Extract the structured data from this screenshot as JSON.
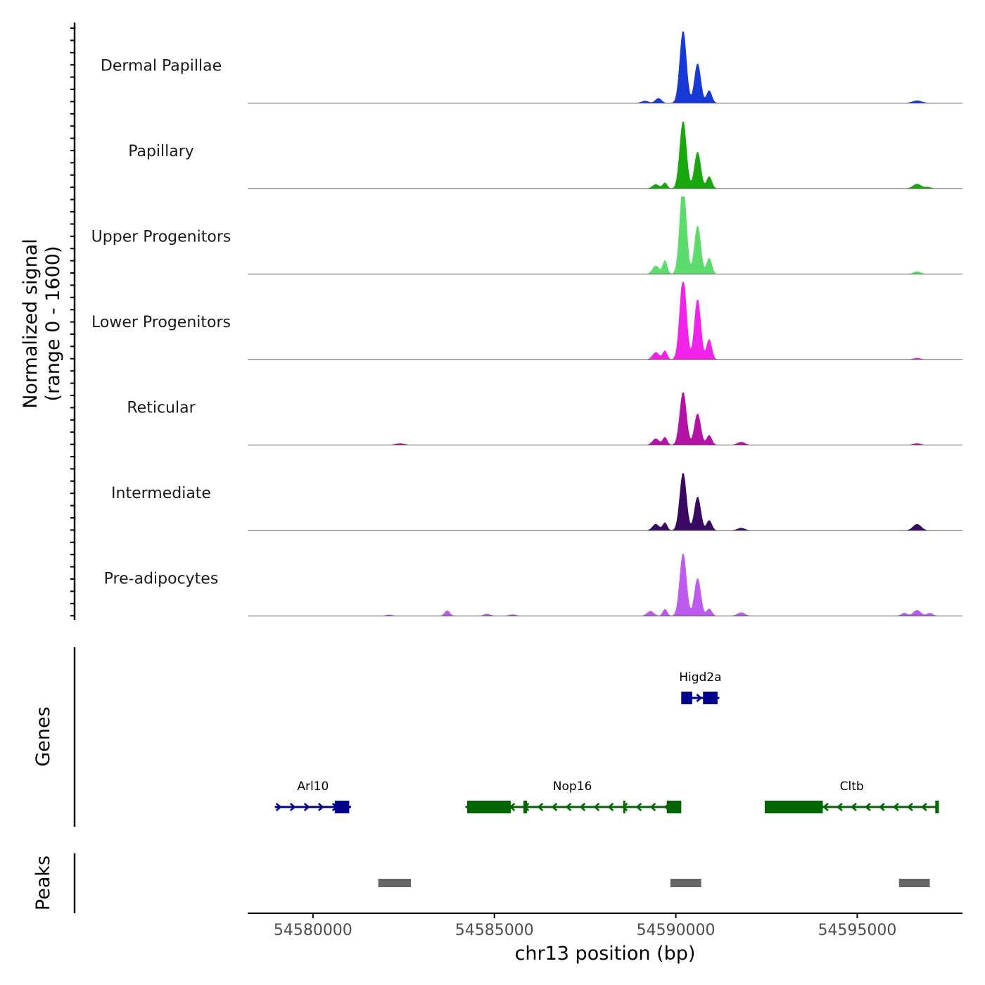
{
  "chart_data": {
    "type": "area",
    "title": "",
    "xlabel": "chr13 position (bp)",
    "ylabel_line1": "Normalized signal",
    "ylabel_line2": "(range 0 - 1600)",
    "ylim": [
      0,
      1600
    ],
    "xlim": [
      54578200,
      54597900
    ],
    "x_ticks": [
      54580000,
      54585000,
      54590000,
      54595000
    ],
    "x_tick_labels": [
      "54580000",
      "54585000",
      "54590000",
      "54595000"
    ],
    "baseline_color": "#555555",
    "series": [
      {
        "name": "Dermal Papillae",
        "color": "#1739d6",
        "peaks": [
          [
            54589150,
            45,
            90
          ],
          [
            54589520,
            100,
            80
          ],
          [
            54590200,
            1500,
            90
          ],
          [
            54590600,
            820,
            85
          ],
          [
            54590920,
            260,
            70
          ],
          [
            54596650,
            50,
            120
          ]
        ]
      },
      {
        "name": "Papillary",
        "color": "#18a80e",
        "peaks": [
          [
            54589450,
            85,
            90
          ],
          [
            54589700,
            120,
            60
          ],
          [
            54590200,
            1400,
            90
          ],
          [
            54590600,
            760,
            85
          ],
          [
            54590920,
            250,
            70
          ],
          [
            54596650,
            95,
            110
          ],
          [
            54596950,
            30,
            80
          ]
        ]
      },
      {
        "name": "Upper Progenitors",
        "color": "#5ddc6d",
        "peaks": [
          [
            54589450,
            170,
            90
          ],
          [
            54589700,
            280,
            60
          ],
          [
            54590200,
            1850,
            90
          ],
          [
            54590600,
            1000,
            85
          ],
          [
            54590920,
            330,
            70
          ],
          [
            54596650,
            50,
            100
          ]
        ]
      },
      {
        "name": "Lower Progenitors",
        "color": "#f322ea",
        "peaks": [
          [
            54589450,
            150,
            90
          ],
          [
            54589700,
            180,
            60
          ],
          [
            54590200,
            1700,
            90
          ],
          [
            54590600,
            1250,
            85
          ],
          [
            54590920,
            420,
            70
          ],
          [
            54596650,
            30,
            100
          ]
        ]
      },
      {
        "name": "Reticular",
        "color": "#b412a6",
        "peaks": [
          [
            54582400,
            30,
            120
          ],
          [
            54589450,
            130,
            90
          ],
          [
            54589700,
            160,
            60
          ],
          [
            54590200,
            1100,
            90
          ],
          [
            54590600,
            650,
            85
          ],
          [
            54590920,
            200,
            70
          ],
          [
            54591800,
            60,
            100
          ],
          [
            54596650,
            30,
            100
          ]
        ]
      },
      {
        "name": "Intermediate",
        "color": "#38095e",
        "peaks": [
          [
            54589450,
            130,
            90
          ],
          [
            54589700,
            160,
            60
          ],
          [
            54590200,
            1200,
            90
          ],
          [
            54590600,
            700,
            85
          ],
          [
            54590920,
            210,
            70
          ],
          [
            54591800,
            50,
            100
          ],
          [
            54596650,
            130,
            110
          ]
        ]
      },
      {
        "name": "Pre-adipocytes",
        "color": "#bd5bef",
        "peaks": [
          [
            54582100,
            25,
            80
          ],
          [
            54583700,
            110,
            70
          ],
          [
            54584800,
            40,
            90
          ],
          [
            54585500,
            30,
            90
          ],
          [
            54589300,
            100,
            90
          ],
          [
            54589700,
            140,
            60
          ],
          [
            54590200,
            1300,
            90
          ],
          [
            54590600,
            780,
            85
          ],
          [
            54590920,
            150,
            70
          ],
          [
            54591800,
            70,
            100
          ],
          [
            54596300,
            60,
            80
          ],
          [
            54596650,
            120,
            100
          ],
          [
            54597000,
            60,
            80
          ]
        ]
      }
    ],
    "genes_panel_label": "Genes",
    "genes": [
      {
        "name": "Higd2a",
        "strand": "+",
        "color": "#00008b",
        "row": 0,
        "start": 54590150,
        "end": 54591200,
        "exons": [
          [
            54590250,
            54590450
          ],
          [
            54590750,
            54591150
          ]
        ],
        "thin_exons": [
          [
            54590150,
            54590250
          ]
        ]
      },
      {
        "name": "Arl10",
        "strand": "+",
        "color": "#00008b",
        "row": 1,
        "start": 54578950,
        "end": 54581050,
        "exons": [
          [
            54580600,
            54581000
          ]
        ],
        "thin_exons": []
      },
      {
        "name": "Nop16",
        "strand": "-",
        "color": "#006400",
        "row": 1,
        "start": 54584200,
        "end": 54590100,
        "exons": [
          [
            54584250,
            54585450
          ],
          [
            54589750,
            54590150
          ]
        ],
        "thin_exons": [
          [
            54585800,
            54585900
          ],
          [
            54588550,
            54588600
          ]
        ]
      },
      {
        "name": "Cltb",
        "strand": "-",
        "color": "#006400",
        "row": 1,
        "start": 54592450,
        "end": 54597250,
        "exons": [
          [
            54592450,
            54594050
          ]
        ],
        "thin_exons": [
          [
            54597150,
            54597250
          ]
        ]
      }
    ],
    "peaks_panel_label": "Peaks",
    "peak_color": "#666666",
    "peak_regions": [
      [
        54581800,
        54582700
      ],
      [
        54589850,
        54590700
      ],
      [
        54596150,
        54597000
      ]
    ]
  }
}
